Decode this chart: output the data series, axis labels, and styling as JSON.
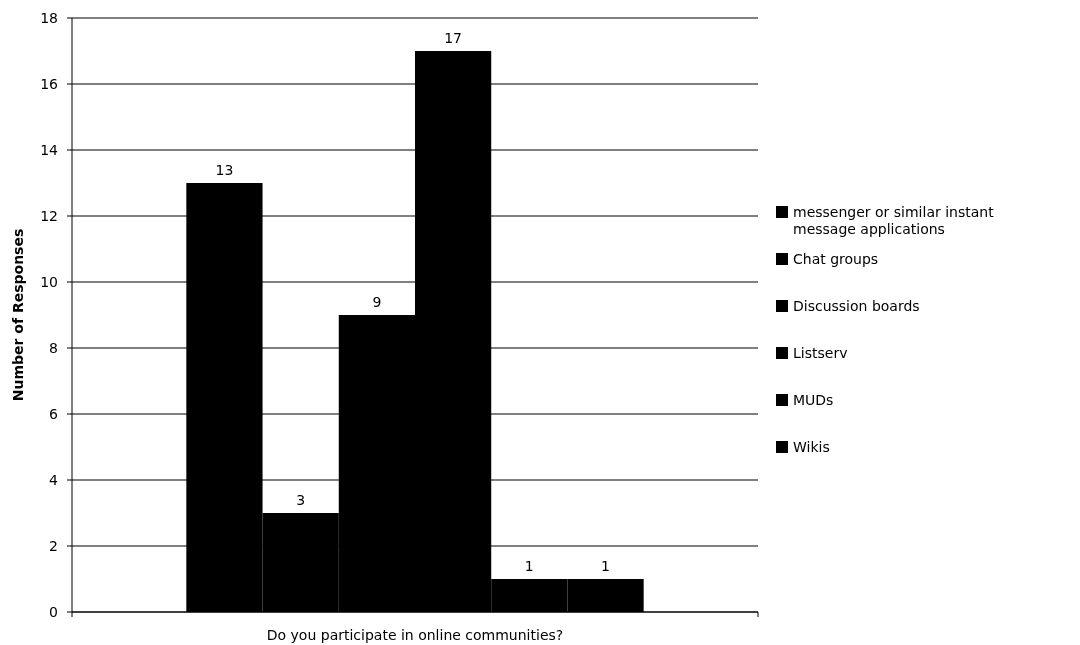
{
  "chart_data": {
    "type": "bar",
    "xlabel": "Do you participate in online communities?",
    "ylabel": "Number of Responses",
    "categories": [
      null
    ],
    "series": [
      {
        "name": "messenger or similar instant message applications",
        "color": "#000000",
        "values": [
          13
        ]
      },
      {
        "name": "Chat groups",
        "color": "#000000",
        "values": [
          3
        ]
      },
      {
        "name": "Discussion boards",
        "color": "#000000",
        "values": [
          9
        ]
      },
      {
        "name": "Listserv",
        "color": "#000000",
        "values": [
          17
        ]
      },
      {
        "name": "MUDs",
        "color": "#000000",
        "values": [
          1
        ]
      },
      {
        "name": "Wikis",
        "color": "#000000",
        "values": [
          1
        ]
      }
    ],
    "ylim": [
      0,
      18
    ],
    "yticks": [
      0,
      2,
      4,
      6,
      8,
      10,
      12,
      14,
      16,
      18
    ],
    "grid": "y",
    "legend": "right",
    "data_labels": true
  }
}
